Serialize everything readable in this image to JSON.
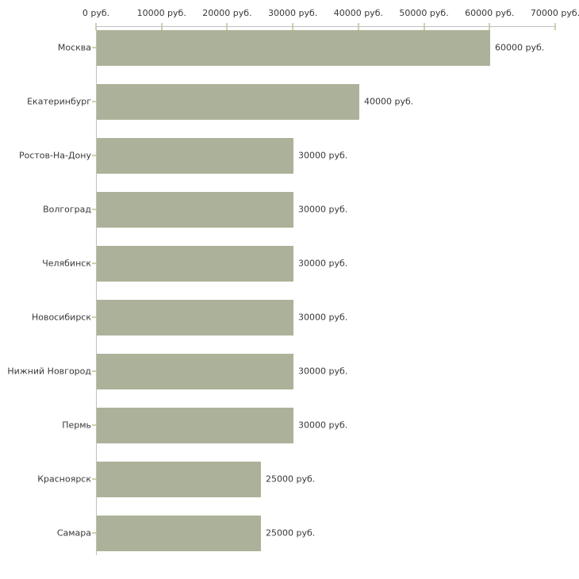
{
  "chart_data": {
    "type": "bar",
    "orientation": "horizontal",
    "title": "",
    "unit": "руб.",
    "categories": [
      "Москва",
      "Екатеринбург",
      "Ростов-На-Дону",
      "Волгоград",
      "Челябинск",
      "Новосибирск",
      "Нижний Новгород",
      "Пермь",
      "Красноярск",
      "Самара"
    ],
    "values": [
      60000,
      40000,
      30000,
      30000,
      30000,
      30000,
      30000,
      30000,
      25000,
      25000
    ],
    "value_labels": [
      "60000 руб.",
      "40000 руб.",
      "30000 руб.",
      "30000 руб.",
      "30000 руб.",
      "30000 руб.",
      "30000 руб.",
      "30000 руб.",
      "25000 руб.",
      "25000 руб."
    ],
    "x_tick_values": [
      0,
      10000,
      20000,
      30000,
      40000,
      50000,
      60000,
      70000
    ],
    "x_tick_labels": [
      "0 руб.",
      "10000 руб.",
      "20000 руб.",
      "30000 руб.",
      "40000 руб.",
      "50000 руб.",
      "60000 руб.",
      "70000 руб."
    ],
    "xlim": [
      0,
      70000
    ],
    "grid": false,
    "legend": "none",
    "colors": {
      "bar": "#acb299",
      "axis": "#c0c0c0",
      "tick": "#d0d0ac",
      "text": "#383838",
      "background": "#ffffff"
    }
  }
}
